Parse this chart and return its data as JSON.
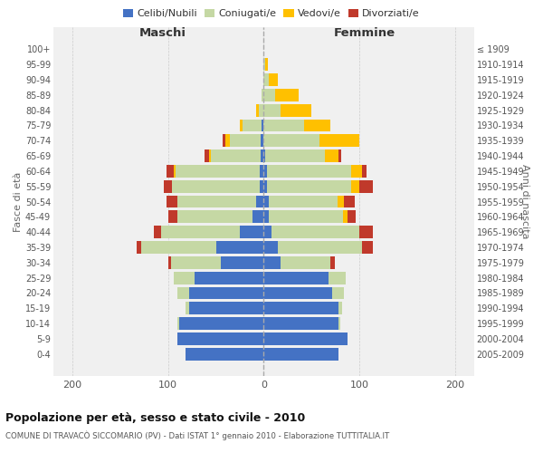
{
  "age_groups": [
    "0-4",
    "5-9",
    "10-14",
    "15-19",
    "20-24",
    "25-29",
    "30-34",
    "35-39",
    "40-44",
    "45-49",
    "50-54",
    "55-59",
    "60-64",
    "65-69",
    "70-74",
    "75-79",
    "80-84",
    "85-89",
    "90-94",
    "95-99",
    "100+"
  ],
  "birth_years": [
    "2005-2009",
    "2000-2004",
    "1995-1999",
    "1990-1994",
    "1985-1989",
    "1980-1984",
    "1975-1979",
    "1970-1974",
    "1965-1969",
    "1960-1964",
    "1955-1959",
    "1950-1954",
    "1945-1949",
    "1940-1944",
    "1935-1939",
    "1930-1934",
    "1925-1929",
    "1920-1924",
    "1915-1919",
    "1910-1914",
    "≤ 1909"
  ],
  "maschi_celibi": [
    82,
    90,
    88,
    78,
    78,
    72,
    45,
    50,
    25,
    12,
    8,
    4,
    4,
    3,
    3,
    2,
    0,
    0,
    0,
    0,
    0
  ],
  "maschi_coniugati": [
    0,
    0,
    2,
    4,
    12,
    22,
    52,
    78,
    82,
    78,
    82,
    92,
    88,
    52,
    32,
    20,
    5,
    2,
    0,
    0,
    0
  ],
  "maschi_vedovi": [
    0,
    0,
    0,
    0,
    0,
    0,
    0,
    0,
    0,
    0,
    0,
    0,
    2,
    2,
    5,
    3,
    3,
    0,
    0,
    0,
    0
  ],
  "maschi_divorziati": [
    0,
    0,
    0,
    0,
    0,
    0,
    3,
    5,
    8,
    10,
    12,
    8,
    8,
    5,
    3,
    0,
    0,
    0,
    0,
    0,
    0
  ],
  "femmine_nubili": [
    78,
    88,
    78,
    78,
    72,
    68,
    18,
    15,
    8,
    5,
    5,
    3,
    3,
    2,
    0,
    0,
    0,
    0,
    0,
    0,
    0
  ],
  "femmine_coniugate": [
    0,
    0,
    2,
    4,
    12,
    18,
    52,
    88,
    92,
    78,
    72,
    88,
    88,
    62,
    58,
    42,
    18,
    12,
    5,
    2,
    0
  ],
  "femmine_vedove": [
    0,
    0,
    0,
    0,
    0,
    0,
    0,
    0,
    0,
    5,
    7,
    9,
    12,
    14,
    42,
    28,
    32,
    25,
    10,
    2,
    0
  ],
  "femmine_divorziate": [
    0,
    0,
    0,
    0,
    0,
    0,
    4,
    11,
    14,
    8,
    11,
    14,
    5,
    3,
    0,
    0,
    0,
    0,
    0,
    0,
    0
  ],
  "colors": {
    "celibi": "#4472c4",
    "coniugati": "#c5d8a4",
    "vedovi": "#ffc000",
    "divorziati": "#c0392b"
  },
  "xlim": 220,
  "title": "Popolazione per età, sesso e stato civile - 2010",
  "subtitle": "COMUNE DI TRAVACÒ SICCOMARIO (PV) - Dati ISTAT 1° gennaio 2010 - Elaborazione TUTTITALIA.IT",
  "ylabel": "Fasce di età",
  "ylabel_right": "Anni di nascita",
  "legend_labels": [
    "Celibi/Nubili",
    "Coniugati/e",
    "Vedovi/e",
    "Divorziati/e"
  ],
  "bg_color": "#f0f0f0",
  "plot_bg": "#ffffff"
}
